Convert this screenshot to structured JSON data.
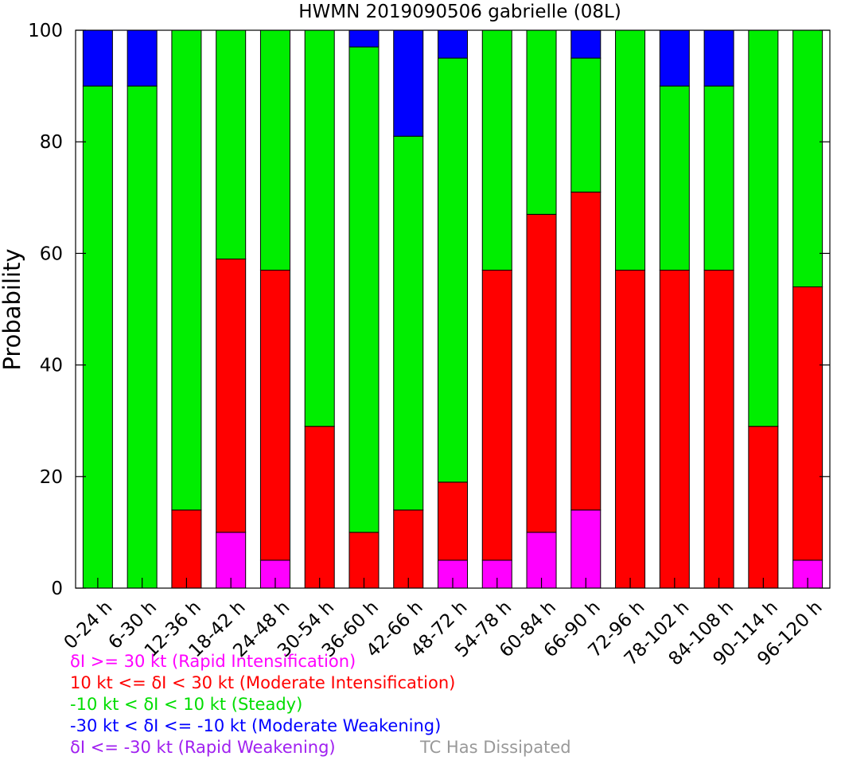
{
  "chart_data": {
    "type": "bar",
    "stacked": true,
    "title": "HWMN 2019090506 gabrielle (08L)",
    "xlabel": "",
    "ylabel": "Probability",
    "ylim": [
      0,
      100
    ],
    "yticks": [
      0,
      20,
      40,
      60,
      80,
      100
    ],
    "grid": false,
    "categories": [
      "0-24 h",
      "6-30 h",
      "12-36 h",
      "18-42 h",
      "24-48 h",
      "30-54 h",
      "36-60 h",
      "42-66 h",
      "48-72 h",
      "54-78 h",
      "60-84 h",
      "66-90 h",
      "72-96 h",
      "78-102 h",
      "84-108 h",
      "90-114 h",
      "96-120 h"
    ],
    "series": [
      {
        "name": "δI >= 30 kt (Rapid Intensification)",
        "color": "#ff00ff",
        "values": [
          0,
          0,
          0,
          10,
          5,
          0,
          0,
          0,
          5,
          5,
          10,
          14,
          0,
          0,
          0,
          0,
          5
        ]
      },
      {
        "name": "10 kt <= δI < 30 kt (Moderate Intensification)",
        "color": "#ff0000",
        "values": [
          0,
          0,
          14,
          49,
          52,
          29,
          10,
          14,
          14,
          52,
          57,
          57,
          57,
          57,
          57,
          29,
          49
        ]
      },
      {
        "name": "-10 kt < δI < 10 kt (Steady)",
        "color": "#00ee00",
        "values": [
          90,
          90,
          86,
          41,
          43,
          71,
          87,
          67,
          76,
          43,
          33,
          24,
          43,
          33,
          33,
          71,
          46
        ]
      },
      {
        "name": "-30 kt < δI <= -10 kt (Moderate Weakening)",
        "color": "#0000ff",
        "values": [
          10,
          10,
          0,
          0,
          0,
          0,
          3,
          19,
          5,
          0,
          0,
          5,
          0,
          10,
          10,
          0,
          0
        ]
      },
      {
        "name": "δI <= -30 kt (Rapid Weakening)",
        "color": "#a020f0",
        "values": [
          0,
          0,
          0,
          0,
          0,
          0,
          0,
          0,
          0,
          0,
          0,
          0,
          0,
          0,
          0,
          0,
          0
        ]
      }
    ],
    "legend": {
      "placement": "bottom-left",
      "extra_label": "TC Has Dissipated",
      "extra_color": "#999999"
    }
  }
}
